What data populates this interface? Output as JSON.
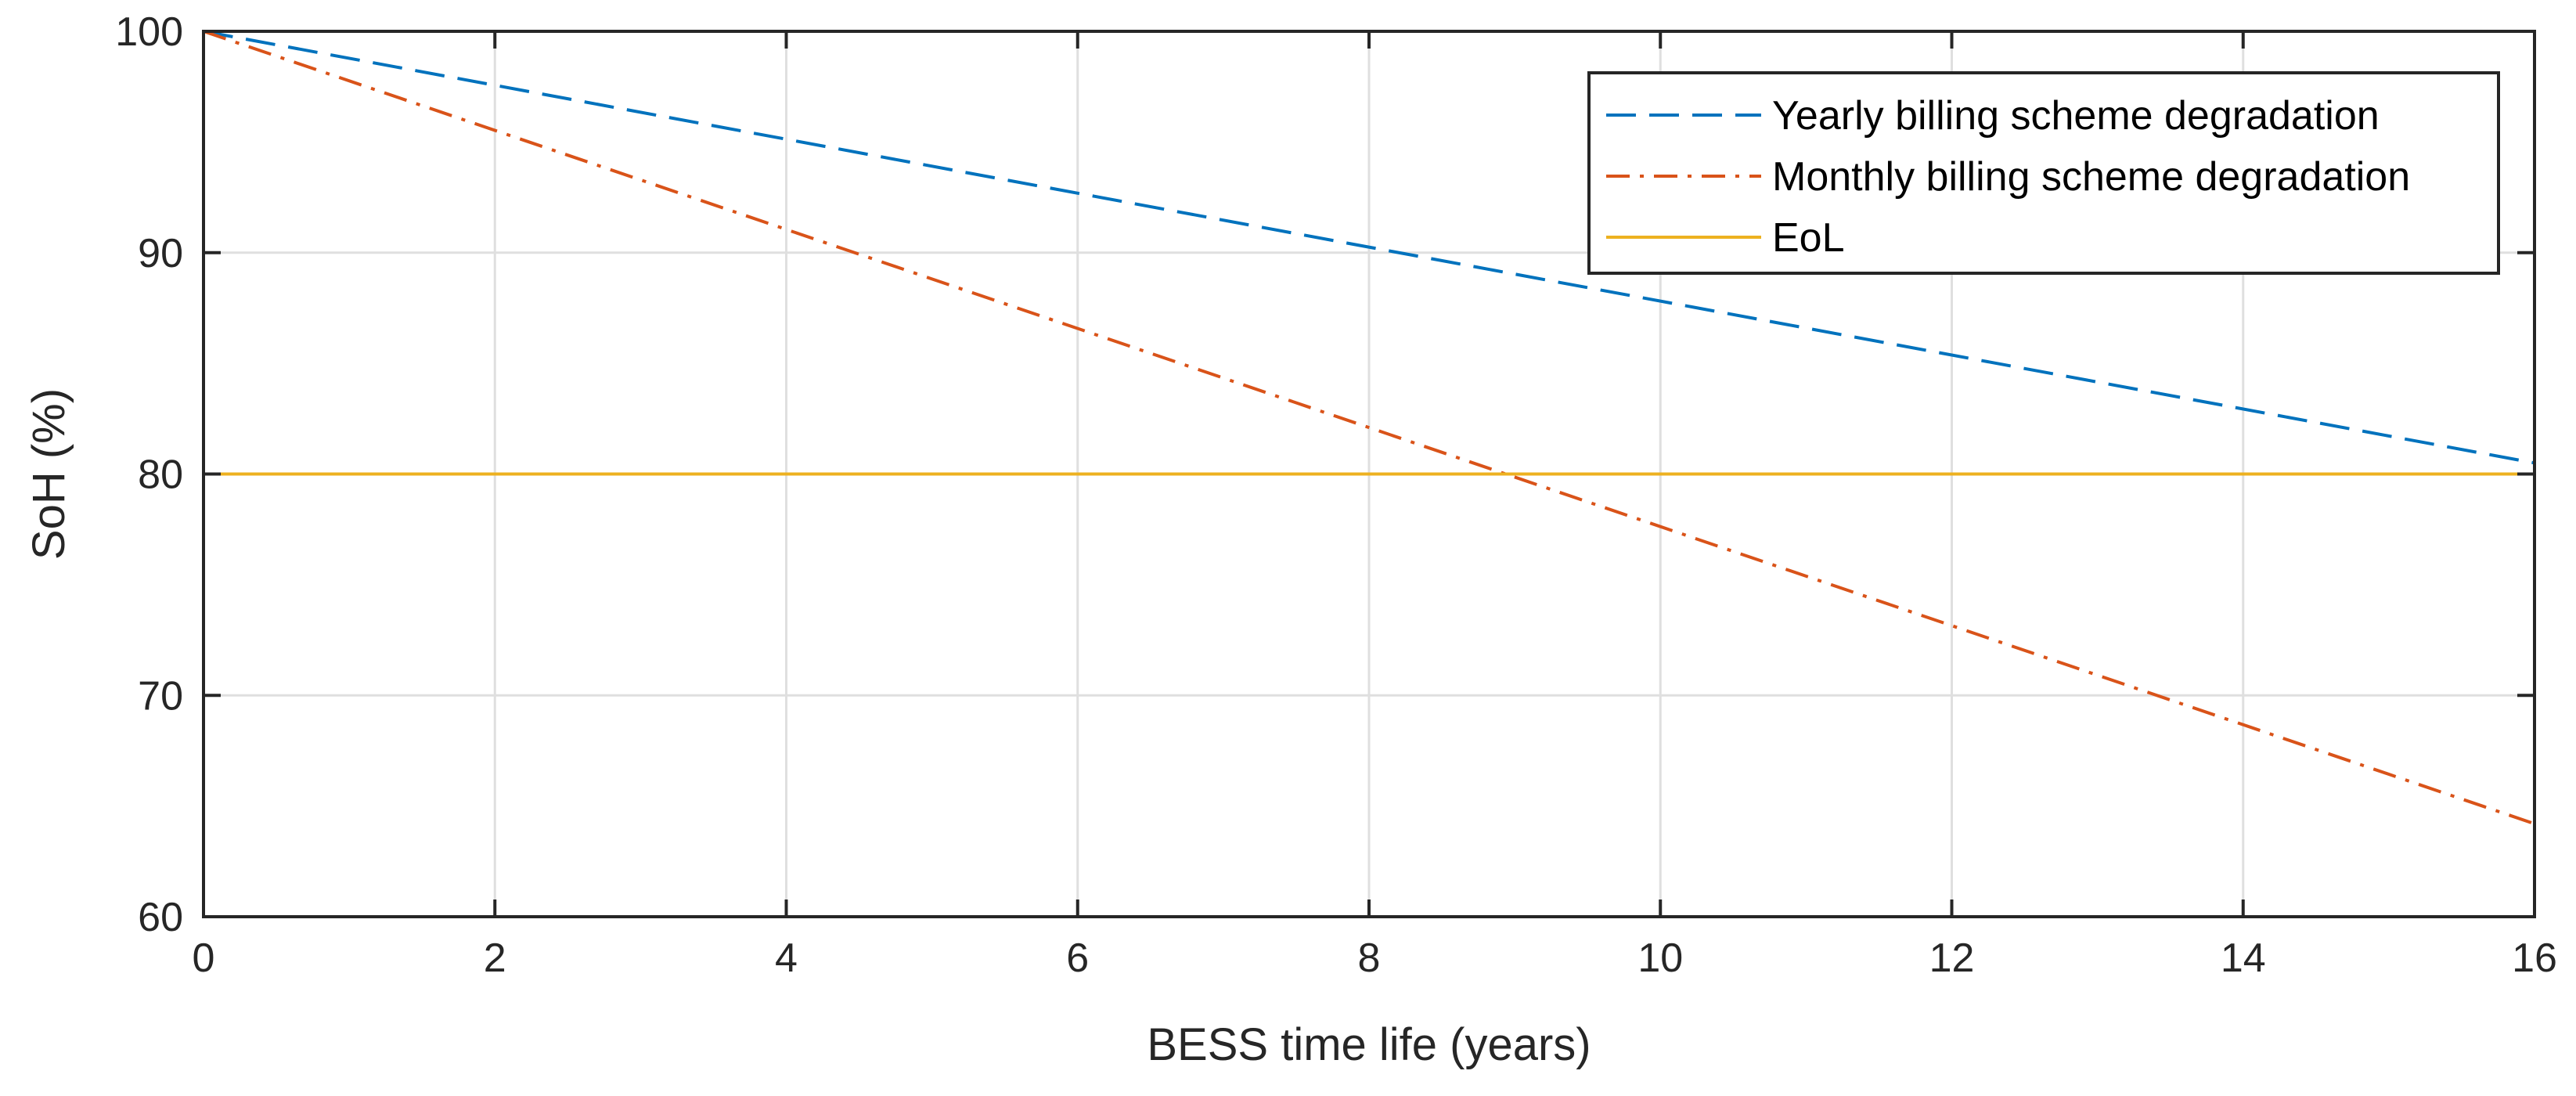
{
  "chart_data": {
    "type": "line",
    "title": "",
    "xlabel": "BESS time life (years)",
    "ylabel": "SoH (%)",
    "xlim": [
      0,
      16
    ],
    "ylim": [
      60,
      100
    ],
    "xticks": [
      0,
      2,
      4,
      6,
      8,
      10,
      12,
      14,
      16
    ],
    "yticks": [
      60,
      70,
      80,
      90,
      100
    ],
    "grid": true,
    "legend_position": "top-right",
    "series": [
      {
        "name": "Yearly billing scheme degradation",
        "style": "dashed",
        "color": "#0072BD",
        "x": [
          0,
          16
        ],
        "y": [
          100,
          80.5
        ]
      },
      {
        "name": "Monthly billing scheme degradation",
        "style": "dash-dot",
        "color": "#D95319",
        "x": [
          0,
          16
        ],
        "y": [
          100,
          64.2
        ]
      },
      {
        "name": "EoL",
        "style": "solid",
        "color": "#EDB120",
        "x": [
          0,
          16
        ],
        "y": [
          80,
          80
        ]
      }
    ]
  }
}
